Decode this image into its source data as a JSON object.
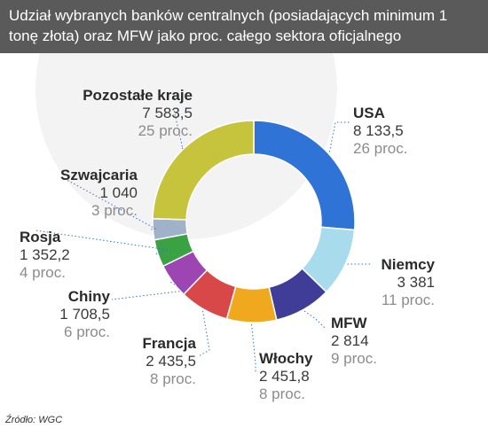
{
  "header": {
    "title": "Udział wybranych banków centralnych (posiadających minimum 1 tonę złota) oraz MFW jako proc. całego sektora oficjalnego"
  },
  "chart_data": {
    "type": "pie",
    "donut": true,
    "title": "Udział wybranych banków centralnych (posiadających minimum 1 tonę złota) oraz MFW jako proc. całego sektora oficjalnego",
    "slices": [
      {
        "label": "USA",
        "value": 8133.5,
        "value_text": "8 133,5",
        "pct_text": "26 proc.",
        "color": "#2f73d6"
      },
      {
        "label": "Niemcy",
        "value": 3381,
        "value_text": "3 381",
        "pct_text": "11 proc.",
        "color": "#a8dcec"
      },
      {
        "label": "MFW",
        "value": 2814,
        "value_text": "2 814",
        "pct_text": "9 proc.",
        "color": "#3f3d97"
      },
      {
        "label": "Włochy",
        "value": 2451.8,
        "value_text": "2 451,8",
        "pct_text": "8 proc.",
        "color": "#f0a81e"
      },
      {
        "label": "Francja",
        "value": 2435.5,
        "value_text": "2 435,5",
        "pct_text": "8 proc.",
        "color": "#d94848"
      },
      {
        "label": "Chiny",
        "value": 1708.5,
        "value_text": "1 708,5",
        "pct_text": "6 proc.",
        "color": "#9c45b3"
      },
      {
        "label": "Rosja",
        "value": 1352.2,
        "value_text": "1 352,2",
        "pct_text": "4 proc.",
        "color": "#3aa243"
      },
      {
        "label": "Szwajcaria",
        "value": 1040,
        "value_text": "1 040",
        "pct_text": "3 proc.",
        "color": "#9fb2c9"
      },
      {
        "label": "Pozostałe kraje",
        "value": 7583.5,
        "value_text": "7 583,5",
        "pct_text": "25 proc.",
        "color": "#c6c43c"
      }
    ]
  },
  "source": "Źródło: WGC"
}
